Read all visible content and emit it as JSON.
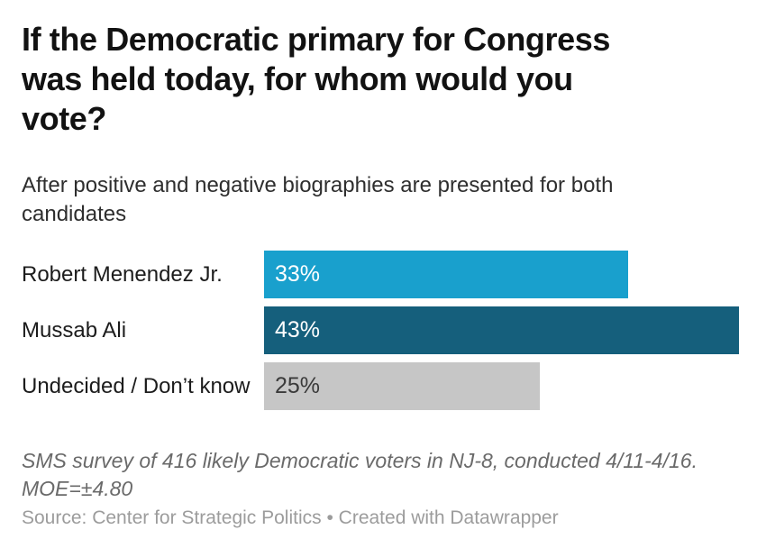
{
  "header": {
    "title_lines": [
      "If the Democratic primary for Congress",
      "was held today, for whom would you",
      "vote?"
    ],
    "subtitle_lines": [
      "After positive and negative biographies are presented for both",
      "candidates"
    ]
  },
  "chart_data": {
    "type": "bar",
    "orientation": "horizontal",
    "title": "If the Democratic primary for Congress was held today, for whom would you vote?",
    "subtitle": "After positive and negative biographies are presented for both candidates",
    "categories": [
      "Robert Menendez Jr.",
      "Mussab Ali",
      "Undecided / Don’t know"
    ],
    "values": [
      33,
      43,
      25
    ],
    "value_labels": [
      "33%",
      "43%",
      "25%"
    ],
    "xlim": [
      0,
      43
    ],
    "bar_colors": [
      "#19A0CD",
      "#155F7C",
      "#C6C6C6"
    ],
    "value_label_colors": [
      "#FFFFFF",
      "#FFFFFF",
      "#3A3A3A"
    ],
    "grid": false,
    "legend": false
  },
  "footer": {
    "note_lines": [
      "SMS survey of 416 likely Democratic voters in NJ-8, conducted 4/11-4/16.",
      "MOE=±4.80"
    ],
    "note": "SMS survey of 416 likely Democratic voters in NJ-8, conducted 4/11-4/16. MOE=±4.80",
    "source": "Source: Center for Strategic Politics • Created with Datawrapper"
  }
}
